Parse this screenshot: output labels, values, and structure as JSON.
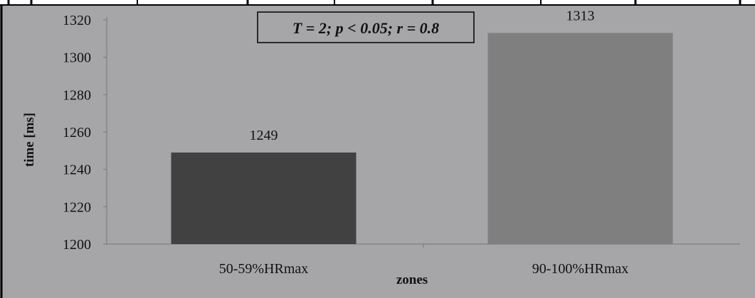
{
  "chart_data": {
    "type": "bar",
    "categories": [
      "50-59%HRmax",
      "90-100%HRmax"
    ],
    "values": [
      1249,
      1313
    ],
    "data_labels": [
      "1249",
      "1313"
    ],
    "colors": [
      "#414141",
      "#7f7f7f"
    ],
    "xlabel": "zones",
    "ylabel": "time [ms]",
    "ylim": [
      1200,
      1320
    ],
    "yticks": [
      1200,
      1220,
      1240,
      1260,
      1280,
      1300,
      1320
    ],
    "annotation": "T = 2; p < 0.05; r = 0.8",
    "grid": false,
    "legend": "none"
  }
}
